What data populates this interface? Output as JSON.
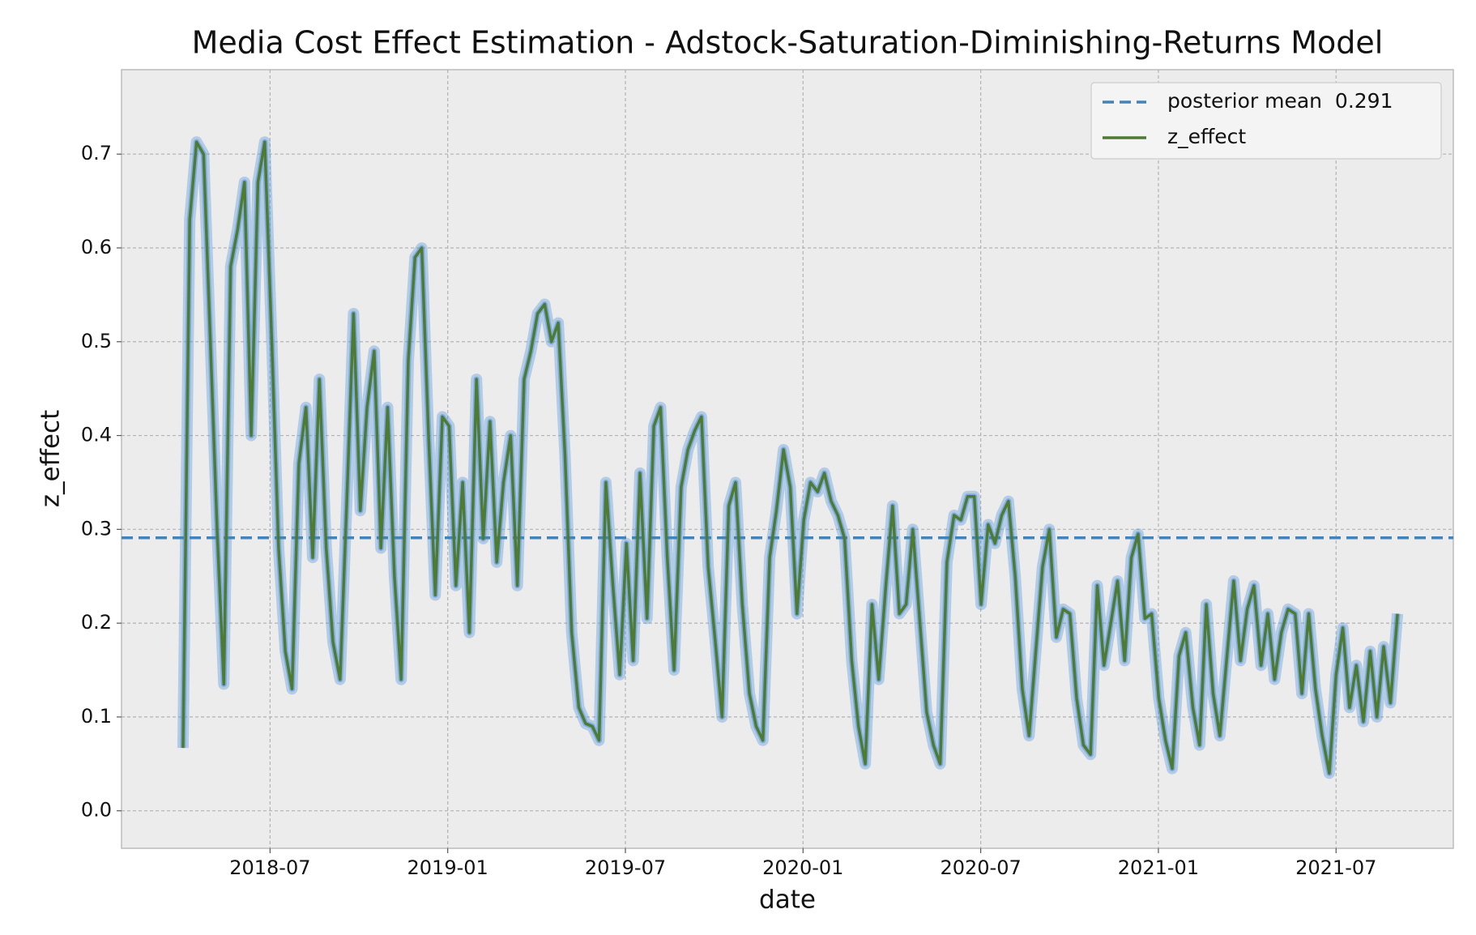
{
  "chart_data": {
    "type": "line",
    "title": "Media Cost Effect Estimation - Adstock-Saturation-Diminishing-Returns Model",
    "xlabel": "date",
    "ylabel": "z_effect",
    "x": [
      2018.255,
      2018.274,
      2018.293,
      2018.313,
      2018.332,
      2018.351,
      2018.37,
      2018.389,
      2018.409,
      2018.428,
      2018.447,
      2018.466,
      2018.485,
      2018.505,
      2018.524,
      2018.543,
      2018.562,
      2018.581,
      2018.601,
      2018.62,
      2018.639,
      2018.658,
      2018.677,
      2018.697,
      2018.716,
      2018.735,
      2018.754,
      2018.773,
      2018.793,
      2018.812,
      2018.831,
      2018.85,
      2018.869,
      2018.889,
      2018.908,
      2018.927,
      2018.946,
      2018.965,
      2018.985,
      2019.004,
      2019.023,
      2019.042,
      2019.061,
      2019.081,
      2019.1,
      2019.119,
      2019.138,
      2019.157,
      2019.177,
      2019.196,
      2019.215,
      2019.234,
      2019.253,
      2019.273,
      2019.292,
      2019.311,
      2019.33,
      2019.349,
      2019.369,
      2019.388,
      2019.407,
      2019.426,
      2019.445,
      2019.465,
      2019.484,
      2019.503,
      2019.522,
      2019.541,
      2019.561,
      2019.58,
      2019.599,
      2019.618,
      2019.637,
      2019.657,
      2019.676,
      2019.695,
      2019.714,
      2019.733,
      2019.753,
      2019.772,
      2019.791,
      2019.81,
      2019.829,
      2019.849,
      2019.868,
      2019.887,
      2019.906,
      2019.925,
      2019.945,
      2019.964,
      2019.983,
      2020.002,
      2020.021,
      2020.041,
      2020.06,
      2020.079,
      2020.098,
      2020.117,
      2020.137,
      2020.156,
      2020.175,
      2020.194,
      2020.213,
      2020.233,
      2020.252,
      2020.271,
      2020.29,
      2020.309,
      2020.329,
      2020.348,
      2020.367,
      2020.386,
      2020.405,
      2020.425,
      2020.444,
      2020.463,
      2020.482,
      2020.501,
      2020.521,
      2020.54,
      2020.559,
      2020.578,
      2020.597,
      2020.617,
      2020.636,
      2020.655,
      2020.674,
      2020.693,
      2020.713,
      2020.732,
      2020.751,
      2020.77,
      2020.789,
      2020.809,
      2020.828,
      2020.847,
      2020.866,
      2020.885,
      2020.905,
      2020.924,
      2020.943,
      2020.962,
      2020.981,
      2021.001,
      2021.02,
      2021.039,
      2021.058,
      2021.077,
      2021.097,
      2021.116,
      2021.135,
      2021.154,
      2021.173,
      2021.193,
      2021.212,
      2021.231,
      2021.25,
      2021.269,
      2021.289,
      2021.308,
      2021.327,
      2021.346,
      2021.365,
      2021.385,
      2021.404,
      2021.423,
      2021.442,
      2021.461,
      2021.481,
      2021.5,
      2021.519,
      2021.538,
      2021.557,
      2021.577,
      2021.596,
      2021.615,
      2021.634,
      2021.653,
      2021.673
    ],
    "series": [
      {
        "name": "z_effect",
        "color": "#4f7a32",
        "values": [
          0.067,
          0.63,
          0.713,
          0.7,
          0.5,
          0.3,
          0.135,
          0.58,
          0.62,
          0.67,
          0.4,
          0.67,
          0.713,
          0.5,
          0.28,
          0.17,
          0.13,
          0.37,
          0.43,
          0.27,
          0.46,
          0.28,
          0.18,
          0.14,
          0.33,
          0.53,
          0.32,
          0.43,
          0.49,
          0.28,
          0.43,
          0.25,
          0.14,
          0.48,
          0.59,
          0.6,
          0.4,
          0.23,
          0.42,
          0.41,
          0.24,
          0.35,
          0.19,
          0.46,
          0.29,
          0.415,
          0.265,
          0.35,
          0.4,
          0.24,
          0.46,
          0.49,
          0.53,
          0.54,
          0.5,
          0.52,
          0.38,
          0.19,
          0.11,
          0.093,
          0.09,
          0.075,
          0.35,
          0.24,
          0.145,
          0.285,
          0.16,
          0.36,
          0.205,
          0.41,
          0.43,
          0.27,
          0.15,
          0.345,
          0.385,
          0.405,
          0.42,
          0.26,
          0.18,
          0.1,
          0.325,
          0.35,
          0.22,
          0.125,
          0.09,
          0.075,
          0.27,
          0.32,
          0.385,
          0.345,
          0.21,
          0.31,
          0.35,
          0.34,
          0.36,
          0.33,
          0.315,
          0.29,
          0.16,
          0.09,
          0.05,
          0.22,
          0.14,
          0.24,
          0.325,
          0.21,
          0.22,
          0.3,
          0.2,
          0.105,
          0.07,
          0.05,
          0.265,
          0.315,
          0.31,
          0.335,
          0.335,
          0.22,
          0.305,
          0.285,
          0.315,
          0.33,
          0.25,
          0.13,
          0.08,
          0.17,
          0.26,
          0.3,
          0.185,
          0.215,
          0.21,
          0.12,
          0.07,
          0.06,
          0.24,
          0.155,
          0.2,
          0.245,
          0.16,
          0.27,
          0.295,
          0.205,
          0.21,
          0.12,
          0.075,
          0.045,
          0.165,
          0.19,
          0.11,
          0.07,
          0.22,
          0.125,
          0.08,
          0.165,
          0.245,
          0.16,
          0.215,
          0.24,
          0.155,
          0.21,
          0.14,
          0.19,
          0.215,
          0.21,
          0.125,
          0.21,
          0.13,
          0.08,
          0.04,
          0.145,
          0.195,
          0.11,
          0.155,
          0.095,
          0.17,
          0.1,
          0.175,
          0.115,
          0.21
        ]
      }
    ],
    "band_color": "#4a90d9",
    "hline": {
      "name": "posterior mean  0.291",
      "value": 0.291,
      "color": "#4682b4",
      "dashed": true
    },
    "xlim": [
      2018.082,
      2021.83
    ],
    "ylim": [
      -0.04,
      0.79
    ],
    "xticks": [
      {
        "value": 2018.5,
        "label": "2018-07"
      },
      {
        "value": 2019.0,
        "label": "2019-01"
      },
      {
        "value": 2019.5,
        "label": "2019-07"
      },
      {
        "value": 2020.0,
        "label": "2020-01"
      },
      {
        "value": 2020.5,
        "label": "2020-07"
      },
      {
        "value": 2021.0,
        "label": "2021-01"
      },
      {
        "value": 2021.5,
        "label": "2021-07"
      }
    ],
    "yticks": [
      {
        "value": 0,
        "label": "0.0"
      },
      0.1,
      0.2,
      0.3,
      0.4,
      0.5,
      0.6,
      0.7
    ],
    "grid": true,
    "legend": "upper right"
  }
}
